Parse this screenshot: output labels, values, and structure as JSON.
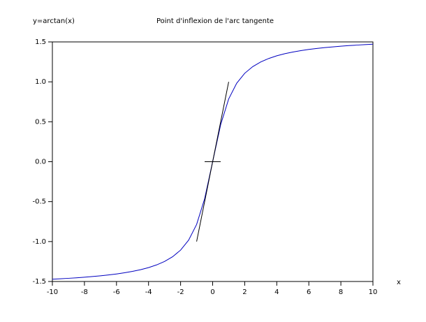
{
  "chart_data": {
    "type": "line",
    "title": "Point d'inflexion de l'arc tangente",
    "y_label": "y=arctan(x)",
    "x_label": "x",
    "xlim": [
      -10,
      10
    ],
    "ylim": [
      -1.5,
      1.5
    ],
    "xticks": [
      -10,
      -8,
      -6,
      -4,
      -2,
      0,
      2,
      4,
      6,
      8,
      10
    ],
    "yticks": [
      -1.5,
      {
        "value": -1,
        "label": "-1.0"
      },
      -0.5,
      {
        "value": 0,
        "label": "0.0"
      },
      0.5,
      {
        "value": 1,
        "label": "1.0"
      },
      1.5
    ],
    "series": [
      {
        "color": "#0000c0",
        "x": [
          -10,
          -9.5,
          -9,
          -8.5,
          -8,
          -7.5,
          -7,
          -6.5,
          -6,
          -5.5,
          -5,
          -4.5,
          -4,
          -3.5,
          -3,
          -2.5,
          -2,
          -1.5,
          -1,
          -0.5,
          0,
          0.5,
          1,
          1.5,
          2,
          2.5,
          3,
          3.5,
          4,
          4.5,
          5,
          5.5,
          6,
          6.5,
          7,
          7.5,
          8,
          8.5,
          9,
          9.5,
          10
        ],
        "values": [
          -1.4711,
          -1.4659,
          -1.4601,
          -1.4537,
          -1.4464,
          -1.4382,
          -1.4289,
          -1.4181,
          -1.4056,
          -1.3909,
          -1.3734,
          -1.3521,
          -1.3258,
          -1.2925,
          -1.249,
          -1.1903,
          -1.1071,
          -0.9828,
          -0.7854,
          -0.4636,
          0,
          0.4636,
          0.7854,
          0.9828,
          1.1071,
          1.1903,
          1.249,
          1.2925,
          1.3258,
          1.3521,
          1.3734,
          1.3909,
          1.4056,
          1.4181,
          1.4289,
          1.4382,
          1.4464,
          1.4537,
          1.4601,
          1.4659,
          1.4711
        ]
      },
      {
        "color": "#000000",
        "x": [
          -1,
          1
        ],
        "values": [
          -1,
          1
        ]
      },
      {
        "color": "#000000",
        "x": [
          -0.5,
          0.5
        ],
        "values": [
          0,
          0
        ]
      }
    ]
  }
}
